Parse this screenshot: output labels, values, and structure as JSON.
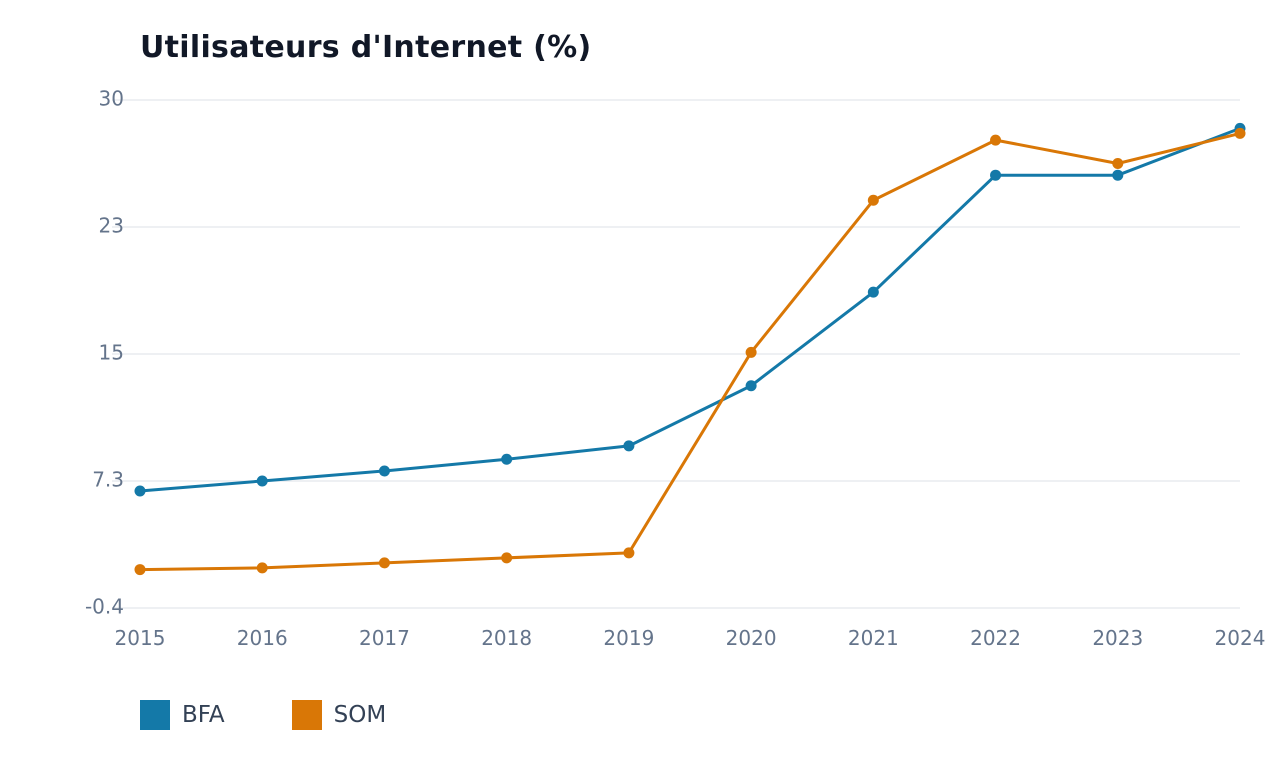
{
  "chart_data": {
    "type": "line",
    "title": "Utilisateurs d'Internet (%)",
    "xlabel": "",
    "ylabel": "",
    "x": [
      "2015",
      "2016",
      "2017",
      "2018",
      "2019",
      "2020",
      "2021",
      "2022",
      "2023",
      "2024"
    ],
    "y_ticks": [
      "30",
      "23",
      "15",
      "7.3",
      "-0.4"
    ],
    "ylim": [
      -0.4,
      30
    ],
    "grid": "horizontal",
    "legend": "bottom-left",
    "series": [
      {
        "name": "BFA",
        "color": "#1479a8",
        "values": [
          6.6,
          7.2,
          7.8,
          8.5,
          9.3,
          12.9,
          18.5,
          25.5,
          25.5,
          28.3
        ]
      },
      {
        "name": "SOM",
        "color": "#d97706",
        "values": [
          1.9,
          2.0,
          2.3,
          2.6,
          2.9,
          14.9,
          24.0,
          27.6,
          26.2,
          28.0
        ]
      }
    ]
  }
}
